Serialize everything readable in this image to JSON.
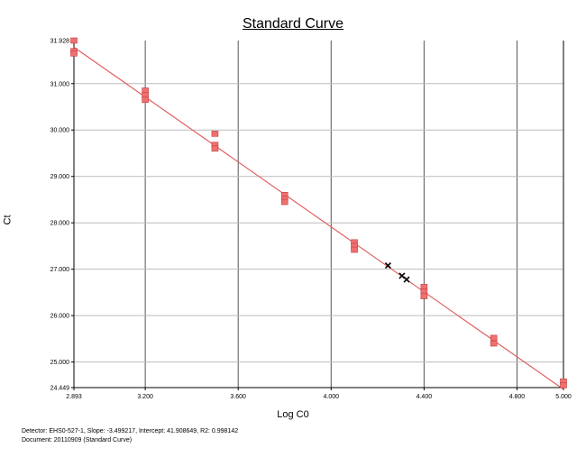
{
  "chart_data": {
    "type": "scatter",
    "title": "Standard Curve",
    "xlabel": "Log C0",
    "ylabel": "Ct",
    "xlim": [
      2.893,
      5.0
    ],
    "ylim": [
      24.449,
      31.928
    ],
    "x_ticks": [
      "2.893",
      "3.200",
      "3.600",
      "4.000",
      "4.400",
      "4.800",
      "5.000"
    ],
    "x_tick_values": [
      2.893,
      3.2,
      3.6,
      4.0,
      4.4,
      4.8,
      5.0
    ],
    "y_ticks": [
      "24.449",
      "25.000",
      "26.000",
      "27.000",
      "28.000",
      "29.000",
      "30.000",
      "31.000",
      "31.928"
    ],
    "y_tick_values": [
      24.449,
      25.0,
      26.0,
      27.0,
      28.0,
      29.0,
      30.0,
      31.0,
      31.928
    ],
    "grid": {
      "vertical": true,
      "horizontal": true
    },
    "regression": {
      "slope": -3.499217,
      "intercept": 41.908649,
      "r2": 0.998142,
      "color": "#e06060"
    },
    "standards": {
      "marker": "square",
      "color": "#f07070",
      "points": [
        {
          "x": 2.893,
          "y": 31.928
        },
        {
          "x": 2.893,
          "y": 31.7
        },
        {
          "x": 2.893,
          "y": 31.65
        },
        {
          "x": 3.2,
          "y": 30.85
        },
        {
          "x": 3.2,
          "y": 30.75
        },
        {
          "x": 3.2,
          "y": 30.65
        },
        {
          "x": 3.5,
          "y": 29.92
        },
        {
          "x": 3.5,
          "y": 29.68
        },
        {
          "x": 3.5,
          "y": 29.6
        },
        {
          "x": 3.8,
          "y": 28.6
        },
        {
          "x": 3.8,
          "y": 28.52
        },
        {
          "x": 3.8,
          "y": 28.45
        },
        {
          "x": 4.1,
          "y": 27.58
        },
        {
          "x": 4.1,
          "y": 27.5
        },
        {
          "x": 4.1,
          "y": 27.42
        },
        {
          "x": 4.4,
          "y": 26.62
        },
        {
          "x": 4.4,
          "y": 26.52
        },
        {
          "x": 4.4,
          "y": 26.42
        },
        {
          "x": 4.7,
          "y": 25.52
        },
        {
          "x": 4.7,
          "y": 25.4
        },
        {
          "x": 5.0,
          "y": 24.58
        },
        {
          "x": 5.0,
          "y": 24.5
        }
      ]
    },
    "unknowns": {
      "marker": "x",
      "color": "#000000",
      "points": [
        {
          "x": 4.245,
          "y": 27.08
        },
        {
          "x": 4.305,
          "y": 26.86
        },
        {
          "x": 4.325,
          "y": 26.78
        }
      ]
    }
  },
  "footer": {
    "line1": "Detector: EHS0-527-1, Slope: -3.499217, Intercept: 41.908649, R2: 0.998142",
    "line2": "Document: 20110909 (Standard Curve)"
  }
}
